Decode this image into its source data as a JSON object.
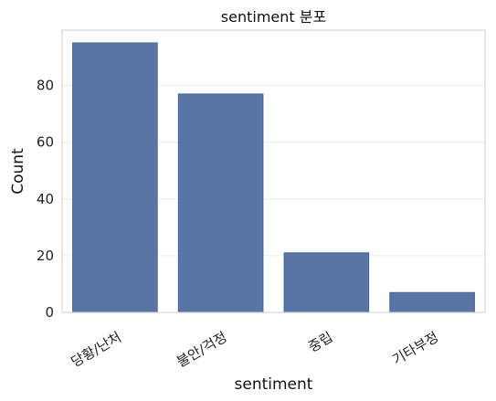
{
  "chart_data": {
    "type": "bar",
    "title": "sentiment 분포",
    "xlabel": "sentiment",
    "ylabel": "Count",
    "categories": [
      "당황/난처",
      "불안/걱정",
      "중립",
      "기타부정"
    ],
    "values": [
      95,
      77,
      21,
      7
    ],
    "ylim": [
      0,
      100
    ],
    "yticks": [
      0,
      20,
      40,
      60,
      80
    ],
    "grid": true,
    "legend": "none",
    "colors": {
      "bar": "#5875a4",
      "bar_edge": "#4a6590",
      "frame": "#cccccc",
      "grid": "#ececec"
    }
  }
}
